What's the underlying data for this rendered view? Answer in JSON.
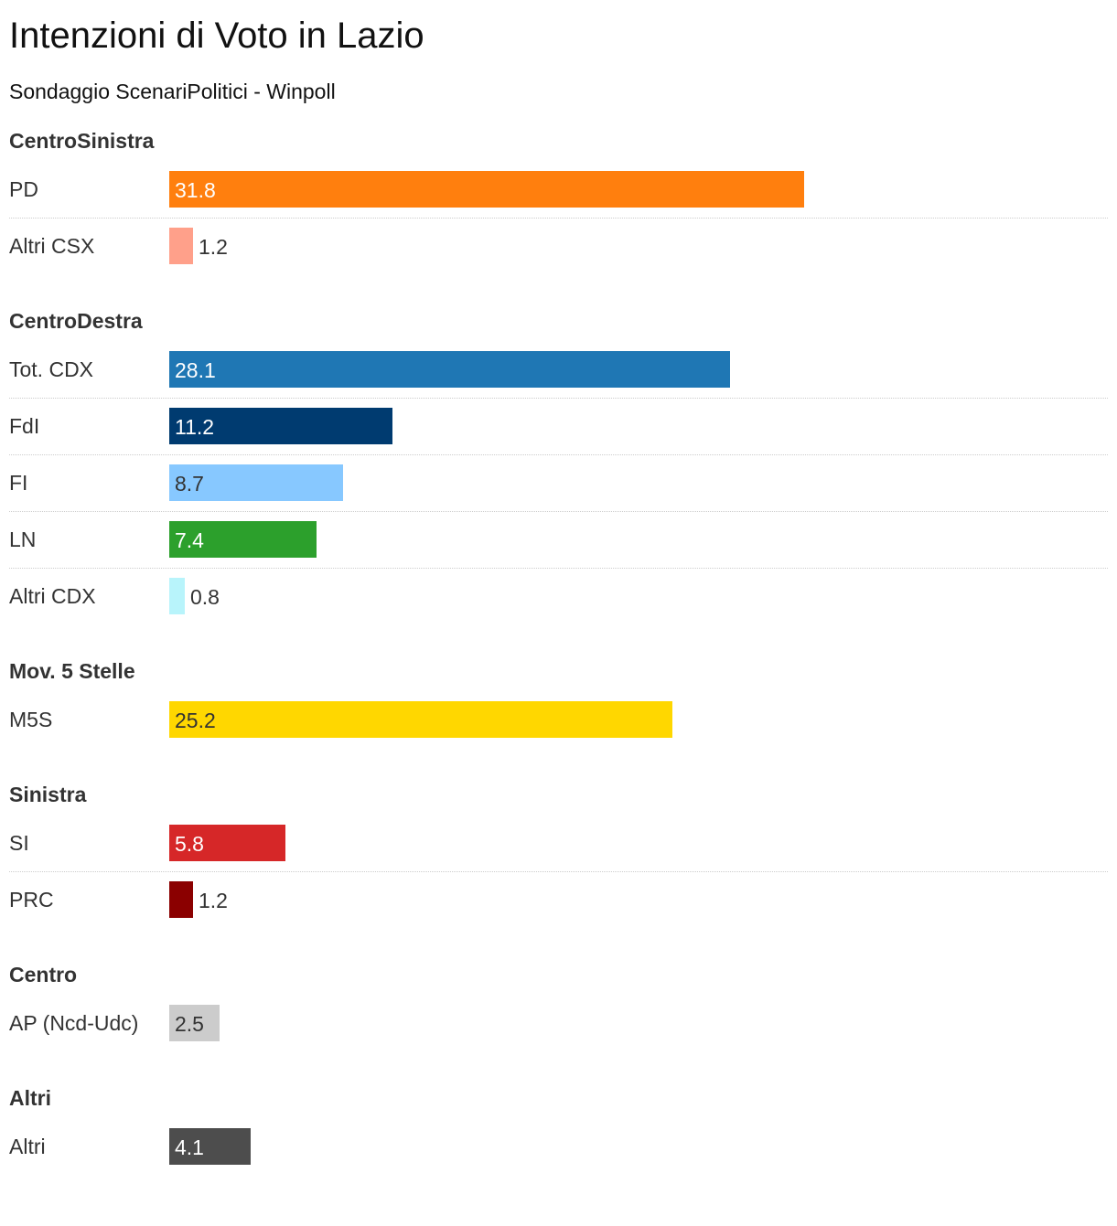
{
  "chart_data": {
    "type": "bar",
    "orientation": "horizontal",
    "title": "Intenzioni di Voto in Lazio",
    "subtitle": "Sondaggio ScenariPolitici - Winpoll",
    "xlim": [
      0,
      35
    ],
    "groups": [
      {
        "name": "CentroSinistra",
        "rows": [
          {
            "label": "PD",
            "value": 31.8,
            "display": "31.8",
            "color": "#ff7f0e",
            "text_color": "#ffffff"
          },
          {
            "label": "Altri CSX",
            "value": 1.2,
            "display": "1.2",
            "color": "#ffa08a",
            "text_color": "#333333"
          }
        ]
      },
      {
        "name": "CentroDestra",
        "rows": [
          {
            "label": "Tot. CDX",
            "value": 28.1,
            "display": "28.1",
            "color": "#1f77b4",
            "text_color": "#ffffff"
          },
          {
            "label": "FdI",
            "value": 11.2,
            "display": "11.2",
            "color": "#003b70",
            "text_color": "#ffffff"
          },
          {
            "label": "FI",
            "value": 8.7,
            "display": "8.7",
            "color": "#87c8ff",
            "text_color": "#333333"
          },
          {
            "label": "LN",
            "value": 7.4,
            "display": "7.4",
            "color": "#2ca02c",
            "text_color": "#ffffff"
          },
          {
            "label": "Altri CDX",
            "value": 0.8,
            "display": "0.8",
            "color": "#b8f4fb",
            "text_color": "#333333"
          }
        ]
      },
      {
        "name": "Mov. 5 Stelle",
        "rows": [
          {
            "label": "M5S",
            "value": 25.2,
            "display": "25.2",
            "color": "#ffd700",
            "text_color": "#333333"
          }
        ]
      },
      {
        "name": "Sinistra",
        "rows": [
          {
            "label": "SI",
            "value": 5.8,
            "display": "5.8",
            "color": "#d62728",
            "text_color": "#ffffff"
          },
          {
            "label": "PRC",
            "value": 1.2,
            "display": "1.2",
            "color": "#8b0000",
            "text_color": "#333333"
          }
        ]
      },
      {
        "name": "Centro",
        "rows": [
          {
            "label": "AP (Ncd-Udc)",
            "value": 2.5,
            "display": "2.5",
            "color": "#cccccc",
            "text_color": "#333333"
          }
        ]
      },
      {
        "name": "Altri",
        "rows": [
          {
            "label": "Altri",
            "value": 4.1,
            "display": "4.1",
            "color": "#4d4d4d",
            "text_color": "#ffffff"
          }
        ]
      }
    ],
    "grid": false,
    "legend": "none"
  }
}
